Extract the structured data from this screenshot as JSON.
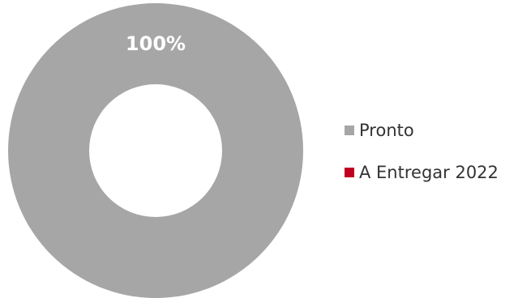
{
  "chart_data": {
    "type": "pie",
    "variant": "donut",
    "categories": [
      "Pronto",
      "A Entregar 2022"
    ],
    "values": [
      100,
      0
    ],
    "data_labels": [
      "100%",
      ""
    ],
    "colors": [
      "#a6a6a6",
      "#c00020"
    ],
    "legend_position": "right"
  }
}
